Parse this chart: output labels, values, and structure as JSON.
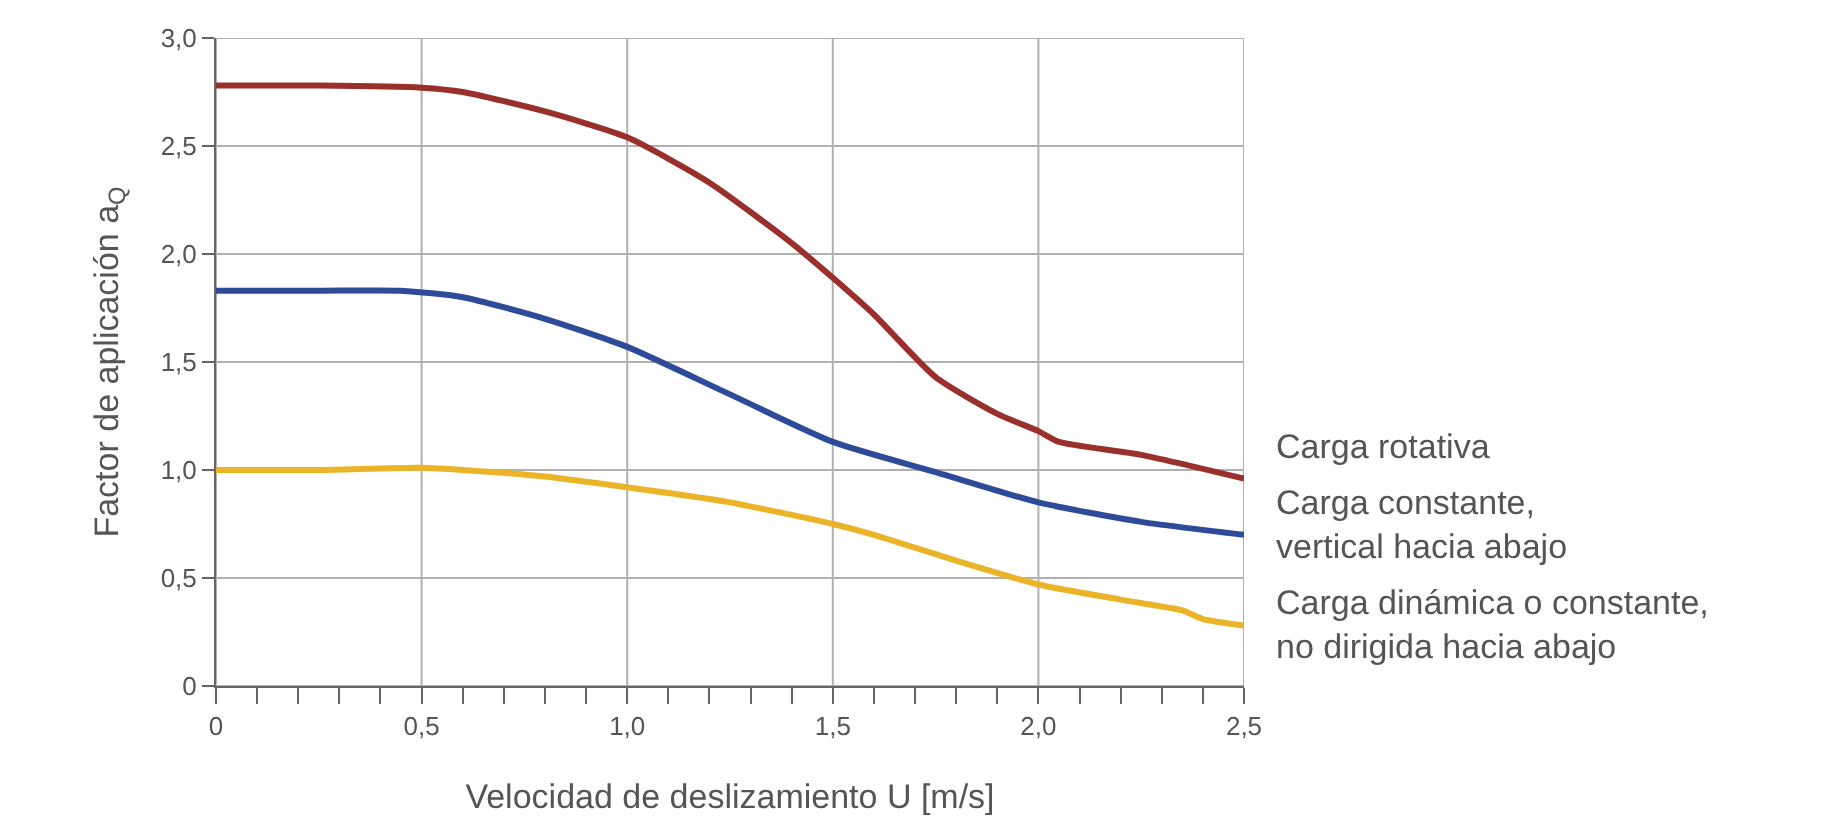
{
  "chart_data": {
    "type": "line",
    "xlabel": "Velocidad de deslizamiento U [m/s]",
    "ylabel": "Factor de aplicación a$_{Q}$",
    "xlim": [
      0,
      2.5
    ],
    "ylim": [
      0,
      3
    ],
    "xticks": [
      0,
      {
        "value": 0.1,
        "label": null
      },
      {
        "value": 0.2,
        "label": null
      },
      {
        "value": 0.3,
        "label": null
      },
      {
        "value": 0.4,
        "label": null
      },
      {
        "value": 0.5,
        "label": "0,5"
      },
      {
        "value": 0.6,
        "label": null
      },
      {
        "value": 0.7,
        "label": null
      },
      {
        "value": 0.8,
        "label": null
      },
      {
        "value": 0.9,
        "label": null
      },
      {
        "value": 1.0,
        "label": "1,0"
      },
      {
        "value": 1.1,
        "label": null
      },
      {
        "value": 1.2,
        "label": null
      },
      {
        "value": 1.3,
        "label": null
      },
      {
        "value": 1.4,
        "label": null
      },
      {
        "value": 1.5,
        "label": "1,5"
      },
      {
        "value": 1.6,
        "label": null
      },
      {
        "value": 1.7,
        "label": null
      },
      {
        "value": 1.8,
        "label": null
      },
      {
        "value": 1.9,
        "label": null
      },
      {
        "value": 2.0,
        "label": "2,0"
      },
      {
        "value": 2.1,
        "label": null
      },
      {
        "value": 2.2,
        "label": null
      },
      {
        "value": 2.3,
        "label": null
      },
      {
        "value": 2.4,
        "label": null
      },
      {
        "value": 2.5,
        "label": "2,5"
      }
    ],
    "yticks": [
      0,
      {
        "value": 0.5,
        "label": "0,5"
      },
      {
        "value": 1.0,
        "label": "1,0"
      },
      {
        "value": 1.5,
        "label": "1,5"
      },
      {
        "value": 2.0,
        "label": "2,0"
      },
      {
        "value": 2.5,
        "label": "2,5"
      },
      {
        "value": 3.0,
        "label": "3,0"
      }
    ],
    "grid": true,
    "legend": false,
    "marker": "none",
    "line_style": "solid",
    "series": [
      {
        "name": "Carga rotativa",
        "color": "#99302b",
        "x": [
          0,
          0.25,
          0.5,
          0.6,
          0.8,
          1.0,
          1.2,
          1.4,
          1.5,
          1.6,
          1.75,
          1.9,
          2.0,
          2.05,
          2.25,
          2.5
        ],
        "values": [
          2.78,
          2.78,
          2.77,
          2.75,
          2.66,
          2.54,
          2.33,
          2.05,
          1.89,
          1.72,
          1.43,
          1.26,
          1.18,
          1.13,
          1.07,
          0.96
        ]
      },
      {
        "name": "Carga constante,\nvertical hacia abajo",
        "color": "#2e4b9a",
        "x": [
          0,
          0.25,
          0.45,
          0.6,
          0.8,
          1.0,
          1.25,
          1.5,
          1.75,
          2.0,
          2.25,
          2.5
        ],
        "values": [
          1.83,
          1.83,
          1.83,
          1.8,
          1.7,
          1.57,
          1.35,
          1.13,
          0.99,
          0.85,
          0.76,
          0.7
        ]
      },
      {
        "name": "Carga dinámica o constante,\nno dirigida hacia abajo",
        "color": "#ebb328",
        "x": [
          0,
          0.25,
          0.5,
          0.6,
          0.8,
          1.0,
          1.25,
          1.5,
          1.6,
          1.8,
          2.0,
          2.2,
          2.35,
          2.4,
          2.5
        ],
        "values": [
          1.0,
          1.0,
          1.01,
          1.0,
          0.97,
          0.92,
          0.85,
          0.75,
          0.7,
          0.58,
          0.47,
          0.4,
          0.35,
          0.31,
          0.28
        ]
      }
    ]
  }
}
